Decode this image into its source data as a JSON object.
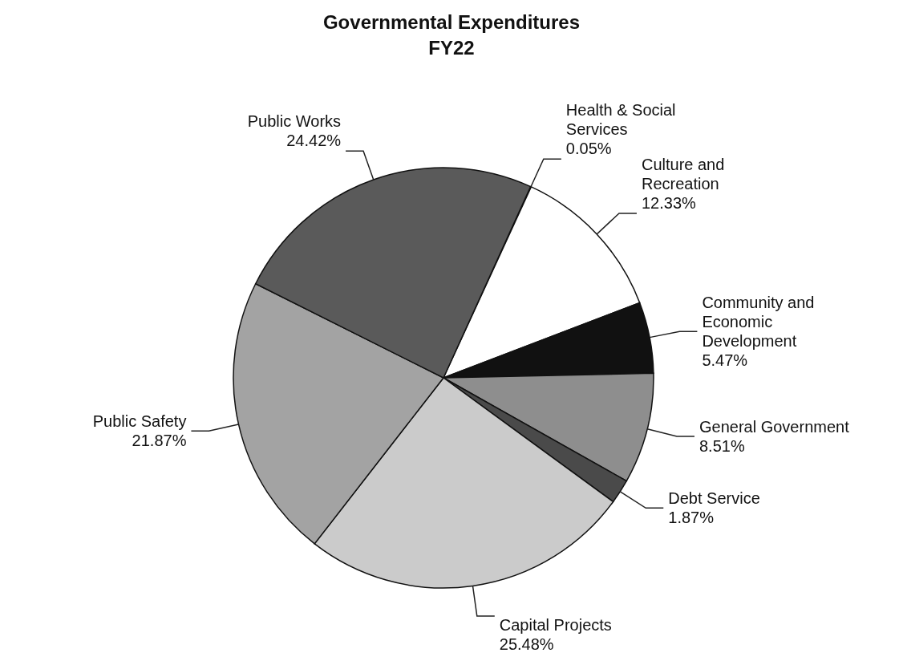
{
  "chart_data": {
    "type": "pie",
    "title": "Governmental Expenditures",
    "subtitle": "FY22",
    "categories": [
      "Health & Social Services",
      "Culture and Recreation",
      "Community and Economic Development",
      "General Government",
      "Debt Service",
      "Capital Projects",
      "Public Safety",
      "Public Works"
    ],
    "values": [
      0.05,
      12.33,
      5.47,
      8.51,
      1.87,
      25.48,
      21.87,
      24.42
    ],
    "value_labels": [
      "0.05%",
      "12.33%",
      "5.47%",
      "8.51%",
      "1.87%",
      "25.48%",
      "21.87%",
      "24.42%"
    ],
    "colors": [
      "#3a3a3a",
      "#ffffff",
      "#111111",
      "#8e8e8e",
      "#4a4a4a",
      "#cbcbcb",
      "#a3a3a3",
      "#5a5a5a"
    ],
    "legend": false
  }
}
